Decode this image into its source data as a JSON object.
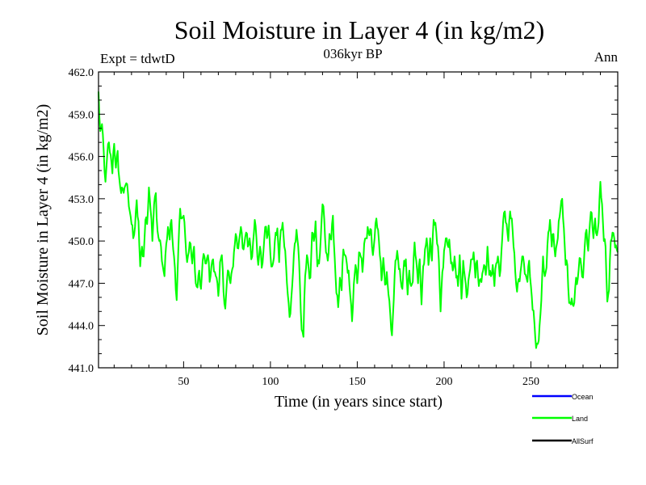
{
  "chart_data": {
    "type": "line",
    "title": "Soil Moisture in Layer 4 (in kg/m2)",
    "subtitle": "036kyr BP",
    "left_label": "Expt = tdwtD",
    "right_label": "Ann",
    "xlabel": "Time (in years since start)",
    "ylabel": "Soil Moisture in Layer 4 (in kg/m2)",
    "xlim": [
      1,
      300
    ],
    "ylim": [
      441,
      462
    ],
    "xticks": [
      50,
      100,
      150,
      200,
      250
    ],
    "xtick_labels": [
      "50",
      "100",
      "150",
      "200",
      "250"
    ],
    "yticks": [
      441,
      444,
      447,
      450,
      453,
      456,
      459,
      462
    ],
    "ytick_labels": [
      "441.0",
      "444.0",
      "447.0",
      "450.0",
      "453.0",
      "456.0",
      "459.0",
      "462.0"
    ],
    "series": [
      {
        "name": "Land",
        "color": "#00ff00",
        "anchors": [
          [
            1,
            460.6
          ],
          [
            2,
            457.8
          ],
          [
            3,
            458.3
          ],
          [
            4,
            456.3
          ],
          [
            5,
            454.2
          ],
          [
            6,
            456.1
          ],
          [
            7,
            457.0
          ],
          [
            8,
            456.1
          ],
          [
            9,
            454.8
          ],
          [
            10,
            456.9
          ],
          [
            11,
            455.2
          ],
          [
            12,
            456.4
          ],
          [
            13,
            454.4
          ],
          [
            14,
            453.4
          ],
          [
            15,
            453.7
          ],
          [
            16,
            453.8
          ],
          [
            17,
            454.1
          ],
          [
            18,
            453.3
          ],
          [
            19,
            452.1
          ],
          [
            20,
            451.2
          ],
          [
            21,
            450.2
          ],
          [
            22,
            451.0
          ],
          [
            23,
            452.9
          ],
          [
            24,
            451.4
          ],
          [
            25,
            448.2
          ],
          [
            26,
            449.6
          ],
          [
            27,
            448.9
          ],
          [
            28,
            451.5
          ],
          [
            29,
            451.2
          ],
          [
            30,
            453.8
          ],
          [
            31,
            452.2
          ],
          [
            32,
            450.0
          ],
          [
            33,
            452.6
          ],
          [
            34,
            453.4
          ],
          [
            35,
            450.7
          ],
          [
            36,
            450.0
          ],
          [
            37,
            449.6
          ],
          [
            38,
            448.2
          ],
          [
            39,
            447.5
          ],
          [
            40,
            449.8
          ],
          [
            41,
            451.0
          ],
          [
            42,
            450.1
          ],
          [
            43,
            451.5
          ],
          [
            44,
            449.4
          ],
          [
            45,
            448.1
          ],
          [
            46,
            445.8
          ],
          [
            47,
            449.5
          ],
          [
            48,
            452.3
          ],
          [
            49,
            451.6
          ],
          [
            50,
            451.8
          ],
          [
            51,
            450.2
          ],
          [
            52,
            448.5
          ],
          [
            53,
            449.2
          ],
          [
            54,
            449.8
          ],
          [
            55,
            448.4
          ],
          [
            56,
            449.6
          ],
          [
            57,
            447.0
          ],
          [
            58,
            446.7
          ],
          [
            59,
            447.9
          ],
          [
            60,
            446.6
          ],
          [
            61,
            448.6
          ],
          [
            62,
            448.9
          ],
          [
            63,
            448.4
          ],
          [
            64,
            449.0
          ],
          [
            65,
            447.1
          ],
          [
            66,
            448.2
          ],
          [
            67,
            448.7
          ],
          [
            68,
            447.8
          ],
          [
            69,
            447.4
          ],
          [
            70,
            446.1
          ],
          [
            71,
            448.5
          ],
          [
            72,
            449.0
          ],
          [
            73,
            446.4
          ],
          [
            74,
            445.2
          ],
          [
            75,
            447.2
          ],
          [
            76,
            447.8
          ],
          [
            77,
            447.0
          ],
          [
            78,
            448.0
          ],
          [
            79,
            449.2
          ],
          [
            80,
            450.5
          ],
          [
            81,
            449.5
          ],
          [
            82,
            450.1
          ],
          [
            83,
            451.0
          ],
          [
            84,
            449.5
          ],
          [
            85,
            449.8
          ],
          [
            86,
            450.6
          ],
          [
            87,
            449.6
          ],
          [
            88,
            450.2
          ],
          [
            89,
            448.7
          ],
          [
            90,
            449.9
          ],
          [
            91,
            451.5
          ],
          [
            92,
            450.1
          ],
          [
            93,
            448.3
          ],
          [
            94,
            449.6
          ],
          [
            95,
            448.1
          ],
          [
            96,
            449.3
          ],
          [
            97,
            451.0
          ],
          [
            98,
            450.2
          ],
          [
            99,
            451.1
          ],
          [
            100,
            449.0
          ],
          [
            101,
            448.2
          ],
          [
            102,
            448.8
          ],
          [
            103,
            450.6
          ],
          [
            104,
            450.9
          ],
          [
            105,
            448.5
          ],
          [
            106,
            450.8
          ],
          [
            107,
            451.3
          ],
          [
            108,
            449.6
          ],
          [
            109,
            448.2
          ],
          [
            110,
            446.2
          ],
          [
            111,
            444.6
          ],
          [
            112,
            445.9
          ],
          [
            113,
            447.8
          ],
          [
            114,
            449.8
          ],
          [
            115,
            450.8
          ],
          [
            116,
            449.6
          ],
          [
            117,
            446.8
          ],
          [
            118,
            443.7
          ],
          [
            119,
            443.2
          ],
          [
            120,
            447.5
          ],
          [
            121,
            449.0
          ],
          [
            122,
            448.1
          ],
          [
            123,
            447.4
          ],
          [
            124,
            450.6
          ],
          [
            125,
            450.0
          ],
          [
            126,
            451.4
          ],
          [
            127,
            448.2
          ],
          [
            128,
            448.4
          ],
          [
            129,
            450.3
          ],
          [
            130,
            452.6
          ],
          [
            131,
            451.5
          ],
          [
            132,
            449.2
          ],
          [
            133,
            448.6
          ],
          [
            134,
            450.5
          ],
          [
            135,
            450.1
          ],
          [
            136,
            451.8
          ],
          [
            137,
            448.8
          ],
          [
            138,
            446.3
          ],
          [
            139,
            445.3
          ],
          [
            140,
            447.4
          ],
          [
            141,
            446.5
          ],
          [
            142,
            449.4
          ],
          [
            143,
            449.0
          ],
          [
            144,
            448.4
          ],
          [
            145,
            447.9
          ],
          [
            146,
            446.1
          ],
          [
            147,
            444.3
          ],
          [
            148,
            446.9
          ],
          [
            149,
            448.3
          ],
          [
            150,
            447.0
          ],
          [
            151,
            449.2
          ],
          [
            152,
            448.9
          ],
          [
            153,
            447.8
          ],
          [
            154,
            449.8
          ],
          [
            155,
            450.2
          ],
          [
            156,
            451.0
          ],
          [
            157,
            450.4
          ],
          [
            158,
            450.8
          ],
          [
            159,
            449.0
          ],
          [
            160,
            450.2
          ],
          [
            161,
            451.6
          ],
          [
            162,
            450.8
          ],
          [
            163,
            449.0
          ],
          [
            164,
            447.2
          ],
          [
            165,
            448.8
          ],
          [
            166,
            446.9
          ],
          [
            167,
            447.8
          ],
          [
            168,
            446.2
          ],
          [
            169,
            444.8
          ],
          [
            170,
            443.3
          ],
          [
            171,
            445.8
          ],
          [
            172,
            448.6
          ],
          [
            173,
            449.3
          ],
          [
            174,
            448.0
          ],
          [
            175,
            447.2
          ],
          [
            176,
            446.6
          ],
          [
            177,
            448.6
          ],
          [
            178,
            448.7
          ],
          [
            179,
            446.2
          ],
          [
            180,
            447.9
          ],
          [
            181,
            446.8
          ],
          [
            182,
            447.1
          ],
          [
            183,
            449.9
          ],
          [
            184,
            448.6
          ],
          [
            185,
            447.0
          ],
          [
            186,
            448.7
          ],
          [
            187,
            445.5
          ],
          [
            188,
            448.2
          ],
          [
            189,
            449.4
          ],
          [
            190,
            450.2
          ],
          [
            191,
            448.3
          ],
          [
            192,
            450.2
          ],
          [
            193,
            448.6
          ],
          [
            194,
            451.5
          ],
          [
            195,
            451.3
          ],
          [
            196,
            449.8
          ],
          [
            197,
            448.6
          ],
          [
            198,
            445.0
          ],
          [
            199,
            447.8
          ],
          [
            200,
            449.3
          ],
          [
            201,
            450.2
          ],
          [
            202,
            449.7
          ],
          [
            203,
            450.1
          ],
          [
            204,
            448.4
          ],
          [
            205,
            447.9
          ],
          [
            206,
            448.9
          ],
          [
            207,
            447.4
          ],
          [
            208,
            446.8
          ],
          [
            209,
            449.0
          ],
          [
            210,
            445.9
          ],
          [
            211,
            448.6
          ],
          [
            212,
            447.4
          ],
          [
            213,
            446.0
          ],
          [
            214,
            447.2
          ],
          [
            215,
            448.0
          ],
          [
            216,
            448.7
          ],
          [
            217,
            449.2
          ],
          [
            218,
            447.4
          ],
          [
            219,
            448.6
          ],
          [
            220,
            446.8
          ],
          [
            221,
            447.3
          ],
          [
            222,
            447.7
          ],
          [
            223,
            448.3
          ],
          [
            224,
            447.6
          ],
          [
            225,
            449.6
          ],
          [
            226,
            447.6
          ],
          [
            227,
            447.5
          ],
          [
            228,
            448.3
          ],
          [
            229,
            446.8
          ],
          [
            230,
            448.4
          ],
          [
            231,
            448.9
          ],
          [
            232,
            447.5
          ],
          [
            233,
            449.2
          ],
          [
            234,
            451.4
          ],
          [
            235,
            452.1
          ],
          [
            236,
            451.2
          ],
          [
            237,
            450.0
          ],
          [
            238,
            452.1
          ],
          [
            239,
            451.6
          ],
          [
            240,
            449.6
          ],
          [
            241,
            447.8
          ],
          [
            242,
            446.4
          ],
          [
            243,
            447.3
          ],
          [
            244,
            447.8
          ],
          [
            245,
            448.9
          ],
          [
            246,
            448.4
          ],
          [
            247,
            447.6
          ],
          [
            248,
            447.1
          ],
          [
            249,
            448.6
          ],
          [
            250,
            446.8
          ],
          [
            251,
            445.1
          ],
          [
            252,
            444.2
          ],
          [
            253,
            442.4
          ],
          [
            254,
            442.7
          ],
          [
            255,
            444.0
          ],
          [
            256,
            445.8
          ],
          [
            257,
            448.9
          ],
          [
            258,
            447.5
          ],
          [
            259,
            448.1
          ],
          [
            260,
            450.6
          ],
          [
            261,
            451.5
          ],
          [
            262,
            449.6
          ],
          [
            263,
            450.5
          ],
          [
            264,
            448.9
          ],
          [
            265,
            449.8
          ],
          [
            266,
            451.4
          ],
          [
            267,
            452.2
          ],
          [
            268,
            453.0
          ],
          [
            269,
            450.9
          ],
          [
            270,
            448.3
          ],
          [
            271,
            448.3
          ],
          [
            272,
            445.6
          ],
          [
            273,
            445.5
          ],
          [
            274,
            445.5
          ],
          [
            275,
            445.6
          ],
          [
            276,
            447.4
          ],
          [
            277,
            447.3
          ],
          [
            278,
            448.8
          ],
          [
            279,
            448.2
          ],
          [
            280,
            447.4
          ],
          [
            281,
            449.6
          ],
          [
            282,
            450.8
          ],
          [
            283,
            449.3
          ],
          [
            284,
            451.3
          ],
          [
            285,
            452.0
          ],
          [
            286,
            450.2
          ],
          [
            287,
            451.6
          ],
          [
            288,
            450.4
          ],
          [
            289,
            451.3
          ],
          [
            290,
            454.2
          ],
          [
            291,
            452.6
          ],
          [
            292,
            450.0
          ],
          [
            293,
            449.6
          ],
          [
            294,
            445.7
          ],
          [
            295,
            446.5
          ],
          [
            296,
            450.0
          ],
          [
            297,
            450.6
          ],
          [
            298,
            450.2
          ],
          [
            299,
            449.7
          ],
          [
            300,
            449.2
          ]
        ]
      }
    ],
    "legend": {
      "position": "bottom-right",
      "entries": [
        {
          "label": "Ocean",
          "color": "#0000ff"
        },
        {
          "label": "Land",
          "color": "#00ff00"
        },
        {
          "label": "AllSurf",
          "color": "#000000"
        }
      ]
    }
  }
}
